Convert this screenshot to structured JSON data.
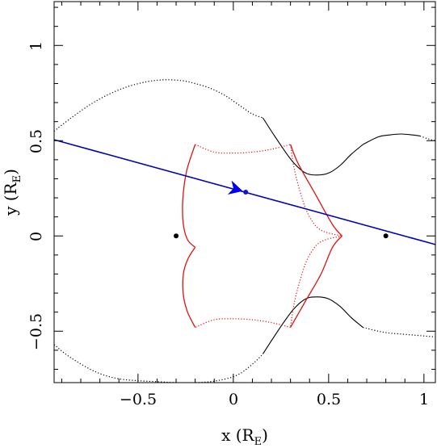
{
  "chart_data": {
    "type": "line",
    "xlabel": "x (R",
    "xlabel_subscript": "E",
    "xlabel_close": ")",
    "ylabel": "y (R",
    "ylabel_subscript": "E",
    "ylabel_close": ")",
    "xlim": [
      -0.94,
      1.06
    ],
    "ylim": [
      -0.77,
      1.23
    ],
    "x_ticks": [
      {
        "value": -0.5,
        "label": "−0.5"
      },
      {
        "value": 0,
        "label": "0"
      },
      {
        "value": 0.5,
        "label": "0.5"
      },
      {
        "value": 1,
        "label": "1"
      }
    ],
    "y_ticks": [
      {
        "value": -0.5,
        "label": "−0.5"
      },
      {
        "value": 0,
        "label": "0"
      },
      {
        "value": 0.5,
        "label": "0.5"
      },
      {
        "value": 1,
        "label": "1"
      }
    ],
    "minor_step": 0.1,
    "grid": false,
    "lens_positions": [
      {
        "x": -0.3,
        "y": 0.0
      },
      {
        "x": 0.8,
        "y": 0.0
      }
    ],
    "source_point": {
      "x": 0.065,
      "y": 0.23
    },
    "source_trajectory": {
      "x": [
        -0.94,
        1.06
      ],
      "y": [
        0.505,
        -0.045
      ]
    },
    "direction_arrow": {
      "x": 0.05,
      "y": 0.235,
      "angle_deg": -15.4
    },
    "caustic": {
      "color": "#dd1111",
      "solid_segments": [
        {
          "x": [
            -0.2,
            -0.245,
            -0.265,
            -0.262,
            -0.24,
            -0.2
          ],
          "y": [
            0.48,
            0.34,
            0.19,
            0.06,
            -0.02,
            -0.06
          ]
        },
        {
          "x": [
            -0.2,
            -0.238,
            -0.262,
            -0.262,
            -0.24,
            -0.2
          ],
          "y": [
            -0.06,
            -0.12,
            -0.2,
            -0.31,
            -0.4,
            -0.48
          ]
        },
        {
          "x": [
            0.3,
            0.38,
            0.46,
            0.52,
            0.57
          ],
          "y": [
            -0.48,
            -0.34,
            -0.2,
            -0.06,
            0.0
          ]
        },
        {
          "x": [
            0.57,
            0.52,
            0.43,
            0.34,
            0.3
          ],
          "y": [
            0.0,
            0.06,
            0.22,
            0.38,
            0.48
          ]
        }
      ],
      "dotted_segments": [
        {
          "x": [
            -0.2,
            -0.1,
            0.0,
            0.1,
            0.2,
            0.3
          ],
          "y": [
            0.48,
            0.44,
            0.435,
            0.44,
            0.455,
            0.48
          ]
        },
        {
          "x": [
            0.3,
            0.32,
            0.36,
            0.4,
            0.46,
            0.57
          ],
          "y": [
            0.48,
            0.35,
            0.2,
            0.1,
            0.03,
            0.0
          ]
        },
        {
          "x": [
            0.57,
            0.46,
            0.4,
            0.36,
            0.32,
            0.3
          ],
          "y": [
            0.0,
            -0.03,
            -0.1,
            -0.2,
            -0.35,
            -0.48
          ]
        },
        {
          "x": [
            0.3,
            0.2,
            0.1,
            0.0,
            -0.1,
            -0.2
          ],
          "y": [
            -0.48,
            -0.455,
            -0.44,
            -0.435,
            -0.44,
            -0.48
          ]
        }
      ]
    },
    "critical_curves": {
      "color": "#000000",
      "solid_segments": [
        {
          "x": [
            0.155,
            0.2,
            0.26,
            0.32,
            0.38,
            0.44,
            0.5,
            0.56,
            0.62,
            0.68
          ],
          "y": [
            0.62,
            0.55,
            0.46,
            0.38,
            0.33,
            0.32,
            0.33,
            0.37,
            0.43,
            0.48
          ]
        },
        {
          "x": [
            0.155,
            0.2,
            0.26,
            0.32,
            0.38,
            0.44,
            0.5,
            0.56,
            0.62,
            0.68
          ],
          "y": [
            -0.62,
            -0.55,
            -0.46,
            -0.38,
            -0.33,
            -0.32,
            -0.33,
            -0.37,
            -0.43,
            -0.48
          ]
        },
        {
          "x": [
            0.68,
            0.76,
            0.82,
            0.88,
            0.94,
            0.98
          ],
          "y": [
            0.48,
            0.52,
            0.53,
            0.535,
            0.53,
            0.525
          ]
        }
      ],
      "dotted_segments": [
        {
          "x": [
            -0.94,
            -0.85,
            -0.75,
            -0.65,
            -0.55,
            -0.45,
            -0.36,
            -0.27,
            -0.2,
            -0.12,
            -0.04,
            0.04,
            0.1,
            0.155
          ],
          "y": [
            0.55,
            0.62,
            0.69,
            0.745,
            0.785,
            0.81,
            0.82,
            0.815,
            0.8,
            0.775,
            0.735,
            0.68,
            0.64,
            0.62
          ]
        },
        {
          "x": [
            -0.94,
            -0.88,
            -0.82,
            -0.75,
            -0.68,
            -0.6,
            -0.5,
            -0.4,
            -0.3,
            -0.2,
            -0.12,
            -0.06,
            0.0
          ],
          "y": [
            -0.57,
            -0.62,
            -0.66,
            -0.7,
            -0.73,
            -0.75,
            -0.76,
            -0.765,
            -0.77,
            -0.77,
            -0.765,
            -0.755,
            -0.74
          ]
        },
        {
          "x": [
            0.0,
            0.04,
            0.08,
            0.12,
            0.155
          ],
          "y": [
            -0.74,
            -0.72,
            -0.69,
            -0.655,
            -0.62
          ]
        },
        {
          "x": [
            0.98,
            1.02,
            1.06
          ],
          "y": [
            0.525,
            0.51,
            0.5
          ]
        },
        {
          "x": [
            0.68,
            0.76,
            0.82,
            0.88,
            0.94,
            1.0,
            1.06
          ],
          "y": [
            -0.48,
            -0.5,
            -0.51,
            -0.515,
            -0.52,
            -0.525,
            -0.53
          ]
        }
      ]
    },
    "colors": {
      "trajectory": "#0000bb",
      "source": "#1111dd",
      "arrow": "#0000ee",
      "lens": "#000000"
    }
  }
}
